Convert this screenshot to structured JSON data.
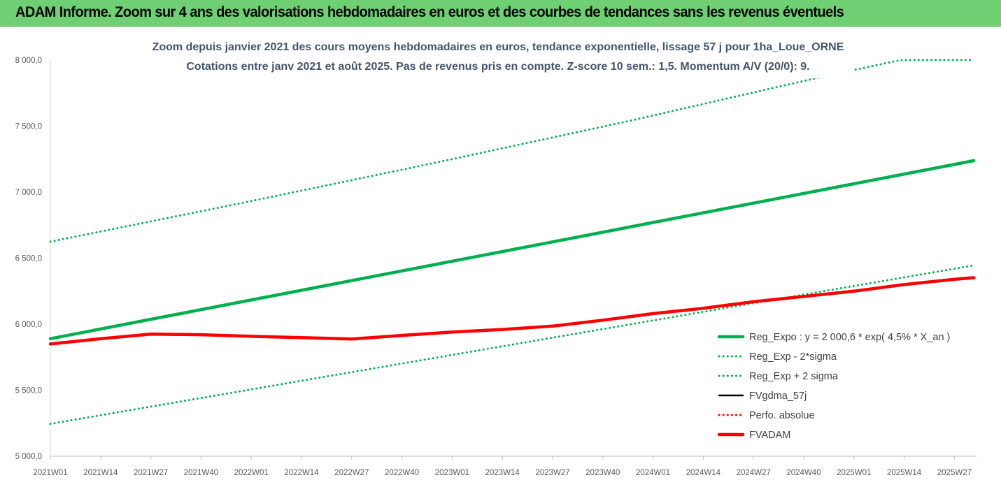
{
  "header": {
    "title": "ADAM Informe. Zoom sur 4 ans des valorisations hebdomadaires en euros et des courbes de tendances sans les revenus éventuels"
  },
  "chart_data": {
    "type": "line",
    "title_line1": "Zoom depuis janvier 2021 des cours moyens hebdomadaires en euros, tendance exponentielle, lissage 57 j pour 1ha_Loue_ORNE",
    "title_line2": "Cotations entre janv 2021 et août 2025.  Pas de revenus pris en compte. Z-score 10 sem.: 1,5. Momentum A/V (20/0): 9.",
    "ylim": [
      5000,
      8000
    ],
    "y_ticks": [
      "5 000,0",
      "5 500,0",
      "6 000,0",
      "6 500,0",
      "7 000,0",
      "7 500,0",
      "8 000,0"
    ],
    "y_tick_values": [
      5000,
      5500,
      6000,
      6500,
      7000,
      7500,
      8000
    ],
    "x_ticks": [
      "2021W01",
      "2021W14",
      "2021W27",
      "2021W40",
      "2022W01",
      "2022W14",
      "2022W27",
      "2022W40",
      "2023W01",
      "2023W14",
      "2023W27",
      "2023W40",
      "2024W01",
      "2024W14",
      "2024W27",
      "2024W40",
      "2025W01",
      "2025W14",
      "2025W27"
    ],
    "x_tick_weeks": [
      0,
      13,
      26,
      39,
      52,
      65,
      78,
      91,
      104,
      117,
      130,
      143,
      156,
      169,
      182,
      195,
      208,
      221,
      234
    ],
    "x_last_week": 239,
    "grid": false,
    "legend_position": "bottom-right",
    "series": [
      {
        "name": "Reg_Expo : y = 2 000,6 * exp( 4,5% *  X_an )",
        "color": "#00b050",
        "style": "solid-thick",
        "weeks": [
          0,
          239
        ],
        "values": [
          5890,
          7238
        ]
      },
      {
        "name": "Reg_Exp - 2*sigma",
        "color": "#00b050",
        "style": "dotted",
        "weeks": [
          0,
          239
        ],
        "values": [
          5245,
          6445
        ]
      },
      {
        "name": "Reg_Exp + 2 sigma",
        "color": "#00b050",
        "style": "dotted",
        "weeks": [
          0,
          50,
          100,
          150,
          200,
          220,
          239
        ],
        "values": [
          6625,
          6920,
          7225,
          7540,
          7875,
          8000,
          8000
        ]
      },
      {
        "name": "FVgdma_57j",
        "color": "#000000",
        "style": "solid",
        "weeks": [
          0,
          13,
          26,
          39,
          52,
          65,
          78,
          91,
          104,
          117,
          130,
          143,
          156,
          169,
          182,
          195,
          208,
          221,
          234,
          239
        ],
        "values": [
          5850,
          5890,
          5920,
          5920,
          5908,
          5898,
          5890,
          5915,
          5940,
          5960,
          5985,
          6030,
          6080,
          6120,
          6170,
          6210,
          6250,
          6300,
          6340,
          6350
        ]
      },
      {
        "name": "Perfo. absolue",
        "color": "#ff0000",
        "style": "dotted",
        "weeks": [
          0,
          13,
          26,
          39,
          52,
          65,
          78,
          91,
          104,
          117,
          130,
          143,
          156,
          169,
          182,
          195,
          208,
          221,
          234,
          239
        ],
        "values": [
          5850,
          5890,
          5925,
          5920,
          5908,
          5898,
          5888,
          5915,
          5940,
          5960,
          5985,
          6030,
          6080,
          6120,
          6170,
          6210,
          6250,
          6300,
          6340,
          6352
        ]
      },
      {
        "name": "FVADAM",
        "color": "#ff0000",
        "style": "solid-thick",
        "weeks": [
          0,
          13,
          26,
          39,
          52,
          65,
          78,
          91,
          104,
          117,
          130,
          143,
          156,
          169,
          182,
          195,
          208,
          221,
          234,
          239
        ],
        "values": [
          5850,
          5890,
          5925,
          5920,
          5908,
          5898,
          5888,
          5915,
          5940,
          5960,
          5985,
          6030,
          6080,
          6120,
          6170,
          6210,
          6250,
          6300,
          6340,
          6352
        ]
      }
    ]
  }
}
